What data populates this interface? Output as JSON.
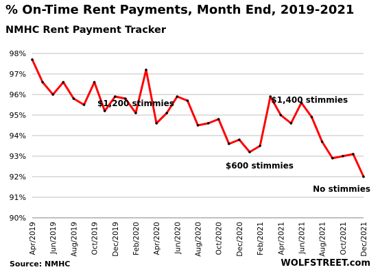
{
  "title": "% On-Time Rent Payments, Month End, 2019-2021",
  "subtitle": "NMHC Rent Payment Tracker",
  "source": "Source: NMHC",
  "brand": "WOLFSTREET.com",
  "colors": {
    "line": "#ff0000",
    "point": "#000000",
    "grid": "#bfbfbf"
  },
  "chart_data": {
    "type": "line",
    "title": "% On-Time Rent Payments, Month End, 2019-2021",
    "subtitle": "NMHC Rent Payment Tracker",
    "xlabel": "",
    "ylabel": "",
    "ylim": [
      90,
      98
    ],
    "y_ticks": [
      "90%",
      "91%",
      "92%",
      "93%",
      "94%",
      "95%",
      "96%",
      "97%",
      "98%"
    ],
    "grid": "horizontal",
    "x": [
      "Apr/2019",
      "May/2019",
      "Jun/2019",
      "Jul/2019",
      "Aug/2019",
      "Sep/2019",
      "Oct/2019",
      "Nov/2019",
      "Dec/2019",
      "Jan/2020",
      "Feb/2020",
      "Mar/2020",
      "Apr/2020",
      "May/2020",
      "Jun/2020",
      "Jul/2020",
      "Aug/2020",
      "Sep/2020",
      "Oct/2020",
      "Nov/2020",
      "Dec/2020",
      "Jan/2021",
      "Feb/2021",
      "Mar/2021",
      "Apr/2021",
      "May/2021",
      "Jun/2021",
      "Jul/2021",
      "Aug/2021",
      "Sep/2021",
      "Oct/2021",
      "Nov/2021",
      "Dec/2021"
    ],
    "x_tick_labels": [
      "Apr/2019",
      "Jun/2019",
      "Aug/2019",
      "Oct/2019",
      "Dec/2019",
      "Feb/2020",
      "Apr/2020",
      "Jun/2020",
      "Aug/2020",
      "Oct/2020",
      "Dec/2020",
      "Feb/2021",
      "Apr/2021",
      "Jun/2021",
      "Aug/2021",
      "Oct/2021",
      "Dec/2021"
    ],
    "values": [
      97.7,
      96.6,
      96.0,
      96.6,
      95.8,
      95.5,
      96.6,
      95.2,
      95.9,
      95.8,
      95.1,
      97.2,
      94.6,
      95.1,
      95.9,
      95.7,
      94.5,
      94.6,
      94.8,
      93.6,
      93.8,
      93.2,
      93.5,
      95.9,
      95.0,
      94.6,
      95.6,
      94.9,
      93.7,
      92.9,
      93.0,
      93.1,
      92.0
    ],
    "annotations": [
      {
        "text": "$1,200 stimmies",
        "x": "Feb/2020"
      },
      {
        "text": "$600 stimmies",
        "x": "Dec/2020"
      },
      {
        "text": "$1,400 stimmies",
        "x": "Apr/2021"
      },
      {
        "text": "No stimmies",
        "x": "Dec/2021"
      }
    ]
  }
}
